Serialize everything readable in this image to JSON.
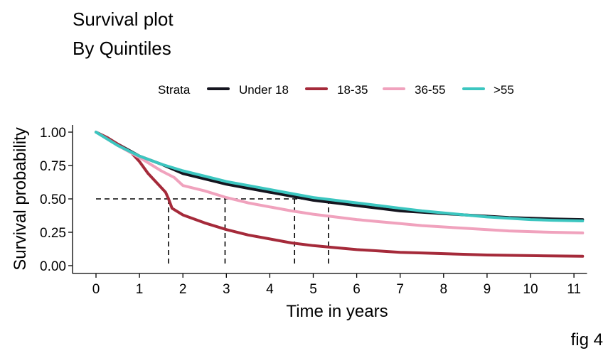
{
  "chart_data": {
    "type": "line",
    "title": "Survival plot",
    "subtitle": "By Quintiles",
    "xlabel": "Time in years",
    "ylabel": "Survival probability",
    "caption": "fig 4",
    "xlim": [
      0,
      11.3
    ],
    "ylim": [
      0,
      1.0
    ],
    "x_ticks": [
      0,
      1,
      2,
      3,
      4,
      5,
      6,
      7,
      8,
      9,
      10,
      11
    ],
    "y_ticks": [
      0,
      0.25,
      0.5,
      0.75,
      1.0
    ],
    "y_tick_labels": [
      "0.00",
      "0.25",
      "0.50",
      "0.75",
      "1.00"
    ],
    "grid": false,
    "legend": {
      "title": "Strata",
      "position": "top"
    },
    "median_reference": {
      "y": 0.5,
      "x_values": [
        1.67,
        2.97,
        4.57,
        5.35
      ]
    },
    "series": [
      {
        "name": "Under 18",
        "color": "#15151f",
        "points": [
          [
            0,
            1.0
          ],
          [
            0.25,
            0.96
          ],
          [
            0.5,
            0.91
          ],
          [
            1,
            0.82
          ],
          [
            1.5,
            0.76
          ],
          [
            2,
            0.69
          ],
          [
            2.5,
            0.65
          ],
          [
            3,
            0.61
          ],
          [
            3.5,
            0.58
          ],
          [
            4,
            0.55
          ],
          [
            4.5,
            0.52
          ],
          [
            5,
            0.49
          ],
          [
            5.5,
            0.47
          ],
          [
            6,
            0.45
          ],
          [
            6.5,
            0.43
          ],
          [
            7,
            0.41
          ],
          [
            7.5,
            0.4
          ],
          [
            8,
            0.39
          ],
          [
            8.5,
            0.38
          ],
          [
            9,
            0.37
          ],
          [
            9.5,
            0.36
          ],
          [
            10,
            0.355
          ],
          [
            10.5,
            0.35
          ],
          [
            11.2,
            0.345
          ]
        ]
      },
      {
        "name": "18-35",
        "color": "#a52a3a",
        "points": [
          [
            0,
            1.0
          ],
          [
            0.25,
            0.96
          ],
          [
            0.5,
            0.91
          ],
          [
            0.8,
            0.85
          ],
          [
            1,
            0.78
          ],
          [
            1.2,
            0.69
          ],
          [
            1.4,
            0.62
          ],
          [
            1.6,
            0.55
          ],
          [
            1.67,
            0.5
          ],
          [
            1.75,
            0.43
          ],
          [
            2,
            0.38
          ],
          [
            2.5,
            0.32
          ],
          [
            3,
            0.27
          ],
          [
            3.5,
            0.23
          ],
          [
            4,
            0.2
          ],
          [
            4.5,
            0.17
          ],
          [
            5,
            0.15
          ],
          [
            5.5,
            0.135
          ],
          [
            6,
            0.12
          ],
          [
            6.5,
            0.11
          ],
          [
            7,
            0.1
          ],
          [
            7.5,
            0.095
          ],
          [
            8,
            0.09
          ],
          [
            9,
            0.08
          ],
          [
            10,
            0.075
          ],
          [
            11.2,
            0.07
          ]
        ]
      },
      {
        "name": "36-55",
        "color": "#f0a2bd",
        "points": [
          [
            0,
            1.0
          ],
          [
            0.25,
            0.95
          ],
          [
            0.5,
            0.9
          ],
          [
            1,
            0.81
          ],
          [
            1.5,
            0.71
          ],
          [
            1.8,
            0.66
          ],
          [
            2,
            0.6
          ],
          [
            2.5,
            0.56
          ],
          [
            3,
            0.51
          ],
          [
            3.5,
            0.47
          ],
          [
            4,
            0.44
          ],
          [
            4.5,
            0.41
          ],
          [
            5,
            0.385
          ],
          [
            5.5,
            0.365
          ],
          [
            6,
            0.345
          ],
          [
            6.5,
            0.33
          ],
          [
            7,
            0.315
          ],
          [
            7.5,
            0.3
          ],
          [
            8,
            0.29
          ],
          [
            8.5,
            0.28
          ],
          [
            9,
            0.27
          ],
          [
            9.5,
            0.26
          ],
          [
            10,
            0.255
          ],
          [
            10.5,
            0.25
          ],
          [
            11.2,
            0.245
          ]
        ]
      },
      {
        "name": ">55",
        "color": "#3cc6c0",
        "points": [
          [
            0,
            1.0
          ],
          [
            0.25,
            0.95
          ],
          [
            0.5,
            0.9
          ],
          [
            1,
            0.82
          ],
          [
            1.5,
            0.76
          ],
          [
            2,
            0.71
          ],
          [
            2.5,
            0.67
          ],
          [
            3,
            0.63
          ],
          [
            3.5,
            0.6
          ],
          [
            4,
            0.57
          ],
          [
            4.5,
            0.54
          ],
          [
            5,
            0.51
          ],
          [
            5.5,
            0.49
          ],
          [
            6,
            0.47
          ],
          [
            6.5,
            0.45
          ],
          [
            7,
            0.43
          ],
          [
            7.5,
            0.41
          ],
          [
            8,
            0.395
          ],
          [
            8.5,
            0.38
          ],
          [
            9,
            0.365
          ],
          [
            9.5,
            0.355
          ],
          [
            10,
            0.345
          ],
          [
            10.5,
            0.34
          ],
          [
            11.2,
            0.335
          ]
        ]
      }
    ]
  }
}
